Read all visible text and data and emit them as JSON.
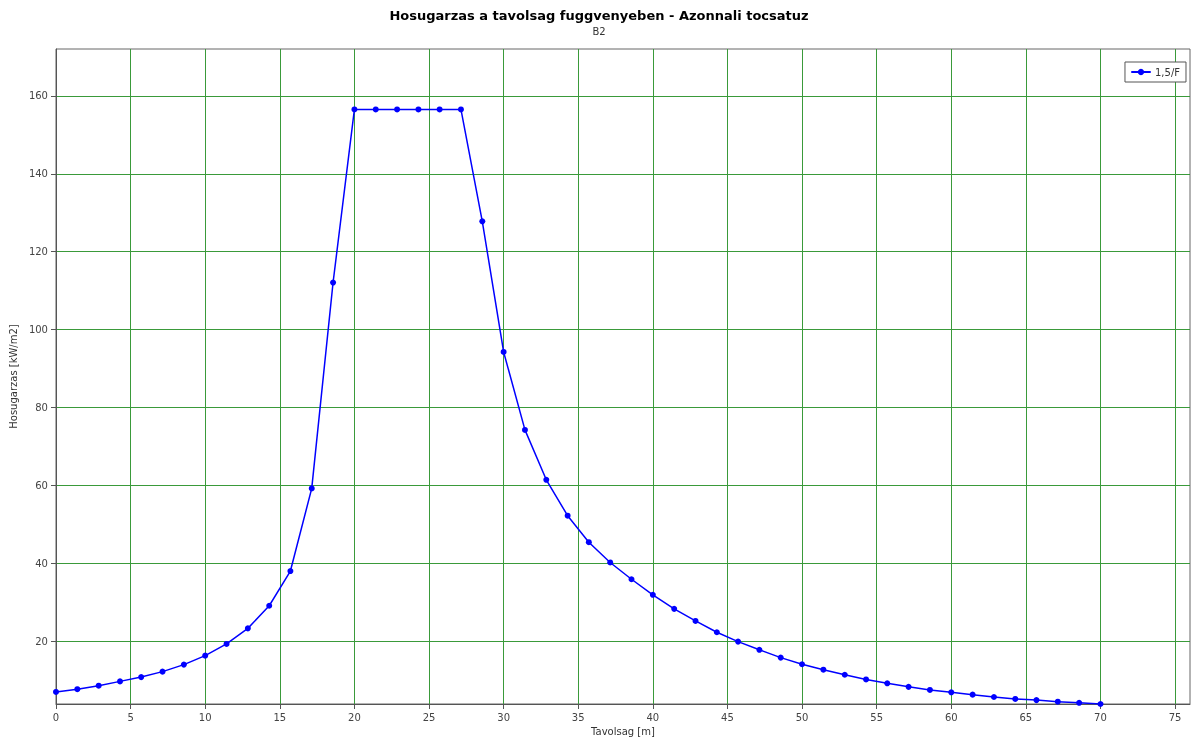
{
  "chart_data": {
    "type": "line",
    "title": "Hosugarzas a tavolsag fuggvenyeben - Azonnali tocsatuz",
    "subtitle": "B2",
    "xlabel": "Tavolsag [m]",
    "ylabel": "Hosugarzas [kW/m2]",
    "x": [
      0,
      1.43,
      2.86,
      4.29,
      5.71,
      7.14,
      8.57,
      10,
      11.43,
      12.86,
      14.29,
      15.71,
      17.14,
      18.57,
      20,
      21.43,
      22.86,
      24.29,
      25.71,
      27.14,
      28.57,
      30,
      31.43,
      32.86,
      34.29,
      35.71,
      37.14,
      38.57,
      40,
      41.43,
      42.86,
      44.29,
      45.71,
      47.14,
      48.57,
      50,
      51.43,
      52.86,
      54.29,
      55.71,
      57.14,
      58.57,
      60,
      61.43,
      62.86,
      64.29,
      65.71,
      67.14,
      68.57,
      70
    ],
    "series": [
      {
        "name": "1,5/F",
        "color": "#0000ff",
        "values": [
          7.1,
          7.8,
          8.7,
          9.8,
          10.9,
          12.3,
          14.1,
          16.4,
          19.4,
          23.4,
          29.2,
          38.1,
          59.3,
          112.1,
          156.5,
          156.5,
          156.5,
          156.5,
          156.5,
          156.5,
          127.8,
          94.3,
          74.3,
          61.5,
          52.3,
          45.5,
          40.3,
          36.0,
          32.0,
          28.4,
          25.3,
          22.4,
          20.0,
          17.9,
          15.9,
          14.2,
          12.8,
          11.5,
          10.3,
          9.3,
          8.4,
          7.6,
          7.0,
          6.4,
          5.8,
          5.3,
          5.0,
          4.6,
          4.3,
          4.0
        ]
      }
    ],
    "xlim": [
      0,
      76
    ],
    "xticks": [
      0,
      5,
      10,
      15,
      20,
      25,
      30,
      35,
      40,
      45,
      50,
      55,
      60,
      65,
      70,
      75
    ],
    "ylim": [
      4,
      172
    ],
    "yticks": [
      20,
      40,
      60,
      80,
      100,
      120,
      140,
      160
    ],
    "grid": true,
    "legend": "top right",
    "marker": "circle",
    "line_style": "solid"
  }
}
